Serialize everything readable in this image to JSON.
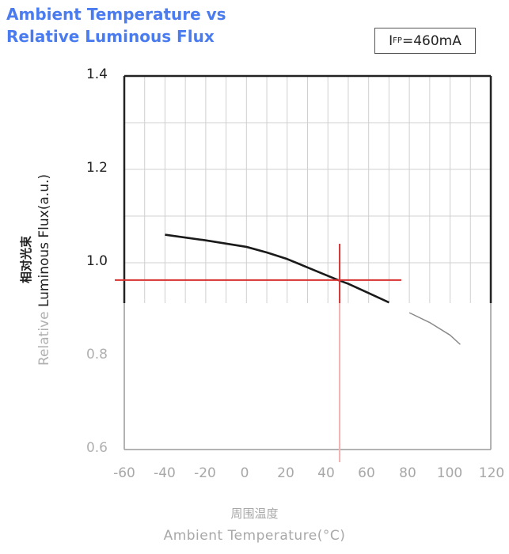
{
  "title": {
    "line1": "Ambient Temperature vs",
    "line2": "Relative Luminous Flux"
  },
  "condition": {
    "label_main": "I",
    "label_sub": "FP",
    "label_value": "=460mA"
  },
  "colors": {
    "title": "#4a7cf0",
    "curve": "#1a1a1a",
    "curve_faded": "#8a8a8a",
    "crosshair": "#d93030",
    "grid": "#d0d0d0",
    "frame": "#222222"
  },
  "axes": {
    "y_title_en": "Relative Luminous Flux(a.u.)",
    "y_title_cn": "相对光束",
    "x_title_en": "Ambient Temperature(°C)",
    "x_title_cn": "周围温度",
    "y_ticks": [
      "1.4",
      "1.2",
      "1.0",
      "0.8",
      "0.6"
    ],
    "x_ticks": [
      "-60",
      "-40",
      "-20",
      "0",
      "20",
      "40",
      "60",
      "80",
      "100",
      "120"
    ]
  },
  "chart_data": {
    "type": "line",
    "title": "Ambient Temperature vs Relative Luminous Flux",
    "annotation": "IFP=460mA",
    "xlabel": "Ambient Temperature(°C)",
    "ylabel": "Relative Luminous Flux(a.u.)",
    "xlim": [
      -60,
      120
    ],
    "ylim": [
      0.6,
      1.4
    ],
    "x_ticks": [
      -60,
      -40,
      -20,
      0,
      20,
      40,
      60,
      80,
      100,
      120
    ],
    "y_ticks": [
      0.6,
      0.8,
      1.0,
      1.2,
      1.4
    ],
    "grid": true,
    "series": [
      {
        "name": "Relative Luminous Flux",
        "x": [
          -40,
          -20,
          0,
          10,
          20,
          30,
          40,
          45,
          50,
          60,
          70,
          80,
          90,
          100,
          105
        ],
        "y": [
          1.06,
          1.048,
          1.034,
          1.022,
          1.008,
          0.99,
          0.972,
          0.963,
          0.955,
          0.935,
          0.915,
          0.893,
          0.872,
          0.845,
          0.825
        ]
      }
    ],
    "crosshair": {
      "x": 45,
      "y": 0.963
    }
  }
}
